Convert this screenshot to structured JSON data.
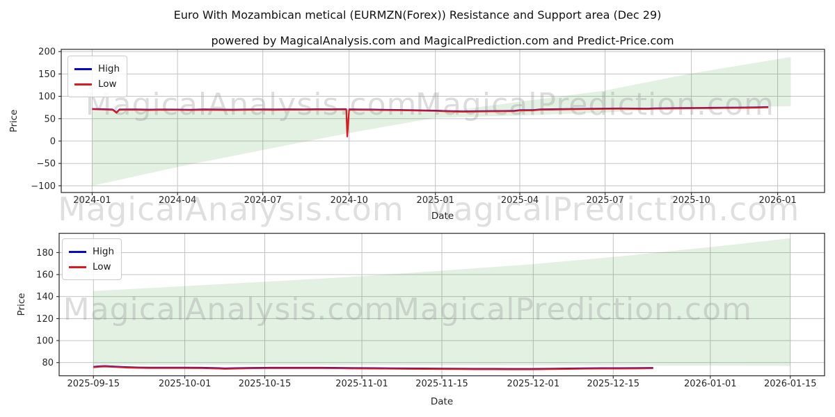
{
  "figure": {
    "title": "Euro With Mozambican metical (EURMZN(Forex)) Resistance and Support area (Dec 29)",
    "subtitle": "powered by MagicalAnalysis.com and MagicalPrediction.com and Predict-Price.com"
  },
  "watermarks": {
    "left": "MagicalAnalysis.com",
    "right": "MagicalPrediction.com"
  },
  "legend": {
    "high_label": "High",
    "low_label": "Low"
  },
  "colors": {
    "high": "#0808c8",
    "low": "#da1a20",
    "band_fill": "rgba(0,128,0,0.11)",
    "grid": "#bcbcbc",
    "spine": "#262626",
    "text": "#262626"
  },
  "chart_data": [
    {
      "type": "line",
      "xlabel": "Date",
      "ylabel": "Price",
      "x_unit": "days since 2024-01-01",
      "xlim_days": [
        -33,
        781
      ],
      "ylim": [
        -115,
        205
      ],
      "grid": true,
      "legend_position": "upper left",
      "x_ticks": [
        {
          "label": "2024-01",
          "day": 0
        },
        {
          "label": "2024-04",
          "day": 91
        },
        {
          "label": "2024-07",
          "day": 182
        },
        {
          "label": "2024-10",
          "day": 274
        },
        {
          "label": "2025-01",
          "day": 366
        },
        {
          "label": "2025-04",
          "day": 456
        },
        {
          "label": "2025-07",
          "day": 547
        },
        {
          "label": "2025-10",
          "day": 639
        },
        {
          "label": "2026-01",
          "day": 731
        }
      ],
      "y_ticks": [
        {
          "label": "200",
          "v": 200
        },
        {
          "label": "150",
          "v": 150
        },
        {
          "label": "100",
          "v": 100
        },
        {
          "label": "50",
          "v": 50
        },
        {
          "label": "0",
          "v": 0
        },
        {
          "label": "−50",
          "v": -50
        },
        {
          "label": "−100",
          "v": -100
        }
      ],
      "band": {
        "name": "Resistance and Support area",
        "x": [
          0,
          91,
          182,
          274,
          366,
          456,
          547,
          639,
          745
        ],
        "lower": [
          -100,
          -58,
          -20,
          18,
          52,
          57,
          64,
          75,
          78
        ],
        "upper": [
          67,
          68,
          69,
          70,
          63,
          88,
          113,
          151,
          188
        ]
      },
      "series": [
        {
          "name": "High",
          "color_key": "high",
          "x": [
            0,
            8,
            15,
            22,
            26,
            29,
            45,
            60,
            75,
            90,
            105,
            120,
            135,
            150,
            165,
            180,
            195,
            210,
            225,
            240,
            255,
            268,
            271,
            272,
            274,
            285,
            300,
            315,
            330,
            345,
            360,
            366,
            380,
            395,
            410,
            425,
            440,
            450,
            456,
            470,
            478,
            490,
            505,
            520,
            535,
            550,
            565,
            580,
            592,
            600,
            615,
            630,
            645,
            660,
            675,
            690,
            700,
            710,
            716,
            721
          ],
          "values": [
            72.2,
            71.7,
            71.4,
            70.7,
            64.2,
            71,
            71.2,
            70.5,
            71,
            70.8,
            70.4,
            71.1,
            70.7,
            70.5,
            71,
            71.2,
            70.9,
            71.4,
            71.2,
            71.6,
            71.4,
            71.8,
            71.5,
            11.2,
            71.2,
            71,
            70.8,
            70.2,
            69.8,
            69.2,
            68.6,
            68.4,
            67.4,
            66.8,
            67.1,
            67.5,
            67.7,
            68,
            69.4,
            69.6,
            71.2,
            71.5,
            72,
            72.4,
            72.8,
            73.2,
            73.4,
            73.2,
            73,
            73.5,
            73.8,
            74.2,
            74.5,
            74.8,
            75,
            75.2,
            75.5,
            75.8,
            76.2,
            76.4
          ]
        },
        {
          "name": "Low",
          "color_key": "low",
          "x": [
            0,
            8,
            15,
            22,
            26,
            29,
            45,
            60,
            75,
            90,
            105,
            120,
            135,
            150,
            165,
            180,
            195,
            210,
            225,
            240,
            255,
            268,
            271,
            272,
            274,
            285,
            300,
            315,
            330,
            345,
            360,
            366,
            380,
            395,
            410,
            425,
            440,
            450,
            456,
            470,
            478,
            490,
            505,
            520,
            535,
            550,
            565,
            580,
            592,
            600,
            615,
            630,
            645,
            660,
            675,
            690,
            700,
            710,
            716,
            721
          ],
          "values": [
            71,
            70.5,
            70.2,
            69.5,
            63,
            69.8,
            70,
            69.3,
            69.8,
            69.6,
            69.2,
            69.9,
            69.5,
            69.3,
            69.8,
            70,
            69.7,
            70.2,
            70,
            70.4,
            70.2,
            70.6,
            70.3,
            10,
            70,
            69.8,
            69.6,
            69,
            68.6,
            68,
            67.4,
            67.2,
            66.2,
            65.6,
            65.9,
            66.3,
            66.5,
            66.8,
            68.2,
            68.4,
            70,
            70.3,
            70.8,
            71.2,
            71.6,
            72,
            72.2,
            72,
            71.8,
            72.3,
            72.6,
            73,
            73.3,
            73.6,
            73.8,
            74,
            74.3,
            74.6,
            75,
            75.2
          ]
        }
      ]
    },
    {
      "type": "line",
      "xlabel": "Date",
      "ylabel": "Price",
      "x_unit": "days since 2025-09-15",
      "xlim_days": [
        -6,
        128
      ],
      "ylim": [
        68,
        197.5
      ],
      "grid": true,
      "legend_position": "upper left",
      "x_ticks": [
        {
          "label": "2025-09-15",
          "day": 0
        },
        {
          "label": "2025-10-01",
          "day": 16
        },
        {
          "label": "2025-10-15",
          "day": 30
        },
        {
          "label": "2025-11-01",
          "day": 47
        },
        {
          "label": "2025-11-15",
          "day": 61
        },
        {
          "label": "2025-12-01",
          "day": 77
        },
        {
          "label": "2025-12-15",
          "day": 91
        },
        {
          "label": "2026-01-01",
          "day": 108
        },
        {
          "label": "2026-01-15",
          "day": 122
        }
      ],
      "y_ticks": [
        {
          "label": "180",
          "v": 180
        },
        {
          "label": "160",
          "v": 160
        },
        {
          "label": "140",
          "v": 140
        },
        {
          "label": "120",
          "v": 120
        },
        {
          "label": "100",
          "v": 100
        },
        {
          "label": "80",
          "v": 80
        }
      ],
      "band": {
        "name": "Resistance and Support area",
        "x": [
          0,
          16,
          30,
          47,
          61,
          77,
          91,
          108,
          122
        ],
        "lower": [
          78,
          77.9,
          77.8,
          77.7,
          77.6,
          77.5,
          77.4,
          77.2,
          77
        ],
        "upper": [
          145,
          149.5,
          153.5,
          158.5,
          163.5,
          169.5,
          176,
          185,
          193
        ]
      },
      "series": [
        {
          "name": "High",
          "color_key": "high",
          "x": [
            0,
            1,
            2,
            4,
            6,
            8,
            10,
            13,
            16,
            19,
            22,
            23,
            25,
            28,
            31,
            34,
            37,
            40,
            43,
            46,
            49,
            52,
            55,
            58,
            61,
            64,
            67,
            70,
            73,
            76,
            78,
            80,
            83,
            86,
            89,
            92,
            95,
            98
          ],
          "values": [
            76.3,
            76.8,
            77,
            76.5,
            76,
            75.7,
            75.6,
            75.6,
            75.6,
            75.5,
            75.1,
            74.9,
            75.1,
            75.4,
            75.5,
            75.5,
            75.5,
            75.5,
            75.4,
            75.2,
            75.1,
            75,
            74.9,
            74.8,
            74.7,
            74.6,
            74.5,
            74.5,
            74.4,
            74.4,
            74.5,
            74.6,
            74.8,
            75,
            75.1,
            75.1,
            75.2,
            75.4
          ]
        },
        {
          "name": "Low",
          "color_key": "low",
          "x": [
            0,
            1,
            2,
            4,
            6,
            8,
            10,
            13,
            16,
            19,
            22,
            23,
            25,
            28,
            31,
            34,
            37,
            40,
            43,
            46,
            49,
            52,
            55,
            58,
            61,
            64,
            67,
            70,
            73,
            76,
            78,
            80,
            83,
            86,
            89,
            92,
            95,
            98
          ],
          "values": [
            75.7,
            76.2,
            76.4,
            75.9,
            75.4,
            75.1,
            75,
            75,
            75,
            74.9,
            74.5,
            74.3,
            74.5,
            74.8,
            74.9,
            74.9,
            74.9,
            74.9,
            74.8,
            74.6,
            74.5,
            74.4,
            74.3,
            74.2,
            74.1,
            74,
            73.9,
            73.9,
            73.8,
            73.8,
            73.9,
            74,
            74.2,
            74.4,
            74.5,
            74.5,
            74.6,
            74.8
          ]
        }
      ]
    }
  ]
}
